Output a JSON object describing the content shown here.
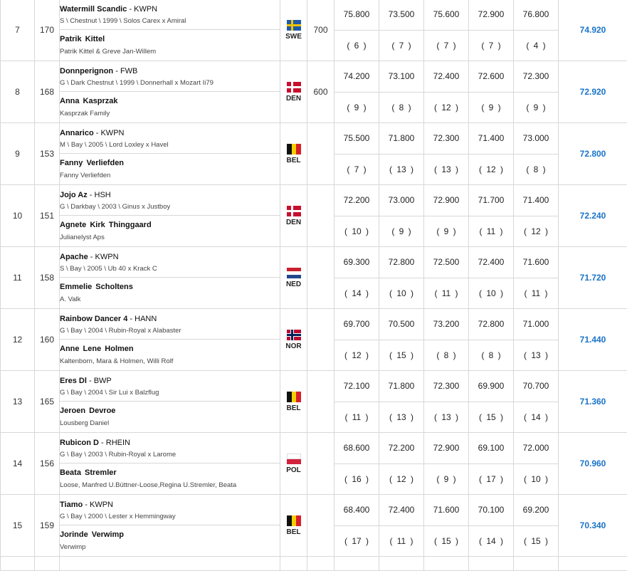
{
  "rows": [
    {
      "rank": "7",
      "start": "170",
      "horse": "Watermill Scandic",
      "studbook": "KWPN",
      "details": "S \\ Chestnut \\ 1999 \\ Solos Carex x Amiral",
      "rider": "Patrik  Kittel",
      "owner": "Patrik Kittel & Greve Jan-Willem",
      "nation": "SWE",
      "flag": "swe",
      "prize": "700",
      "scores": [
        "75.800",
        "73.500",
        "75.600",
        "72.900",
        "76.800"
      ],
      "ranks": [
        "( 6 )",
        "( 7 )",
        "( 7 )",
        "( 7 )",
        "( 4 )"
      ],
      "total": "74.920"
    },
    {
      "rank": "8",
      "start": "168",
      "horse": "Donnperignon",
      "studbook": "FWB",
      "details": "G \\ Dark Chestnut \\ 1999 \\ Donnerhall x Mozart Ii79",
      "rider": "Anna  Kasprzak",
      "owner": "Kasprzak Family",
      "nation": "DEN",
      "flag": "den",
      "prize": "600",
      "scores": [
        "74.200",
        "73.100",
        "72.400",
        "72.600",
        "72.300"
      ],
      "ranks": [
        "( 9 )",
        "( 8 )",
        "( 12 )",
        "( 9 )",
        "( 9 )"
      ],
      "total": "72.920"
    },
    {
      "rank": "9",
      "start": "153",
      "horse": "Annarico",
      "studbook": "KWPN",
      "details": "M \\ Bay \\ 2005 \\ Lord Loxley x Havel",
      "rider": "Fanny  Verliefden",
      "owner": "Fanny Verliefden",
      "nation": "BEL",
      "flag": "bel",
      "prize": "",
      "scores": [
        "75.500",
        "71.800",
        "72.300",
        "71.400",
        "73.000"
      ],
      "ranks": [
        "( 7 )",
        "( 13 )",
        "( 13 )",
        "( 12 )",
        "( 8 )"
      ],
      "total": "72.800"
    },
    {
      "rank": "10",
      "start": "151",
      "horse": "Jojo Az",
      "studbook": "HSH",
      "details": "G \\ Darkbay \\ 2003 \\ Ginus x Justboy",
      "rider": "Agnete  Kirk Thinggaard",
      "owner": "Julianelyst Aps",
      "nation": "DEN",
      "flag": "den",
      "prize": "",
      "scores": [
        "72.200",
        "73.000",
        "72.900",
        "71.700",
        "71.400"
      ],
      "ranks": [
        "( 10 )",
        "( 9 )",
        "( 9 )",
        "( 11 )",
        "( 12 )"
      ],
      "total": "72.240"
    },
    {
      "rank": "11",
      "start": "158",
      "horse": "Apache",
      "studbook": "KWPN",
      "details": "S \\ Bay \\ 2005 \\ Ub 40 x Krack C",
      "rider": "Emmelie  Scholtens",
      "owner": "A. Valk",
      "nation": "NED",
      "flag": "ned",
      "prize": "",
      "scores": [
        "69.300",
        "72.800",
        "72.500",
        "72.400",
        "71.600"
      ],
      "ranks": [
        "( 14 )",
        "( 10 )",
        "( 11 )",
        "( 10 )",
        "( 11 )"
      ],
      "total": "71.720"
    },
    {
      "rank": "12",
      "start": "160",
      "horse": "Rainbow Dancer 4",
      "studbook": "HANN",
      "details": "G \\ Bay \\ 2004 \\ Rubin-Royal x Alabaster",
      "rider": "Anne Lene  Holmen",
      "owner": "Kaltenborn, Mara & Holmen, Willi Rolf",
      "nation": "NOR",
      "flag": "nor",
      "prize": "",
      "scores": [
        "69.700",
        "70.500",
        "73.200",
        "72.800",
        "71.000"
      ],
      "ranks": [
        "( 12 )",
        "( 15 )",
        "( 8 )",
        "( 8 )",
        "( 13 )"
      ],
      "total": "71.440"
    },
    {
      "rank": "13",
      "start": "165",
      "horse": "Eres Dl",
      "studbook": "BWP",
      "details": "G \\ Bay \\ 2004 \\ Sir Lui x Balzflug",
      "rider": "Jeroen  Devroe",
      "owner": "Lousberg Daniel",
      "nation": "BEL",
      "flag": "bel",
      "prize": "",
      "scores": [
        "72.100",
        "71.800",
        "72.300",
        "69.900",
        "70.700"
      ],
      "ranks": [
        "( 11 )",
        "( 13 )",
        "( 13 )",
        "( 15 )",
        "( 14 )"
      ],
      "total": "71.360"
    },
    {
      "rank": "14",
      "start": "156",
      "horse": "Rubicon D",
      "studbook": "RHEIN",
      "details": "G \\ Bay \\ 2003 \\ Rubin-Royal x Larome",
      "rider": "Beata  Stremler",
      "owner": "Loose, Manfred U.Büttner-Loose,Regina U.Stremler, Beata",
      "nation": "POL",
      "flag": "pol",
      "prize": "",
      "scores": [
        "68.600",
        "72.200",
        "72.900",
        "69.100",
        "72.000"
      ],
      "ranks": [
        "( 16 )",
        "( 12 )",
        "( 9 )",
        "( 17 )",
        "( 10 )"
      ],
      "total": "70.960"
    },
    {
      "rank": "15",
      "start": "159",
      "horse": "Tiamo",
      "studbook": "KWPN",
      "details": "G \\ Bay \\ 2000 \\ Lester x Hemmingway",
      "rider": "Jorinde  Verwimp",
      "owner": "Verwimp",
      "nation": "BEL",
      "flag": "bel",
      "prize": "",
      "scores": [
        "68.400",
        "72.400",
        "71.600",
        "70.100",
        "69.200"
      ],
      "ranks": [
        "( 17 )",
        "( 11 )",
        "( 15 )",
        "( 14 )",
        "( 15 )"
      ],
      "total": "70.340"
    }
  ],
  "colors": {
    "total_link": "#1a73c8",
    "border": "#d8d8d8"
  }
}
